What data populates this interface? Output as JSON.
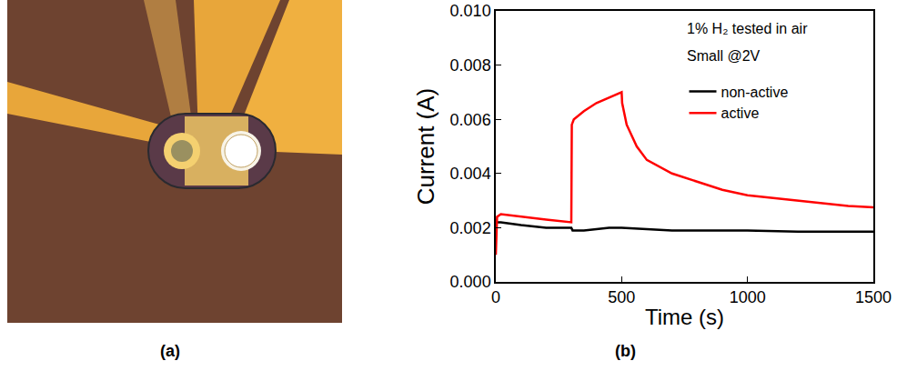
{
  "figure": {
    "captions": [
      "(a)",
      "(b)"
    ]
  },
  "chart_data": {
    "type": "line",
    "x_label": "Time (s)",
    "y_label": "Current (A)",
    "annotations": [
      "1% H₂ tested in air",
      "Small @2V"
    ],
    "xlim": [
      0,
      1500
    ],
    "xticks": [
      0,
      500,
      1000,
      1500
    ],
    "ylim": [
      0,
      0.01
    ],
    "yticks": [
      {
        "value": 0,
        "label": "0.000"
      },
      {
        "value": 0.002,
        "label": "0.002"
      },
      {
        "value": 0.004,
        "label": "0.004"
      },
      {
        "value": 0.006,
        "label": "0.006"
      },
      {
        "value": 0.008,
        "label": "0.008"
      },
      {
        "value": 0.01,
        "label": "0.010"
      }
    ],
    "grid": false,
    "legend": "top right",
    "series": [
      {
        "name": "non-active",
        "color": "#000000",
        "line_style": "solid",
        "x": [
          0,
          20,
          100,
          200,
          300,
          305,
          350,
          400,
          450,
          500,
          550,
          700,
          1000,
          1200,
          1500
        ],
        "values": [
          0.0022,
          0.0022,
          0.0021,
          0.002,
          0.002,
          0.0019,
          0.0019,
          0.00195,
          0.002,
          0.002,
          0.00198,
          0.0019,
          0.0019,
          0.00185,
          0.00185
        ]
      },
      {
        "name": "active",
        "color": "#ff0000",
        "line_style": "solid",
        "x": [
          0,
          5,
          20,
          100,
          200,
          300,
          302,
          310,
          350,
          400,
          450,
          500,
          502,
          520,
          560,
          600,
          700,
          800,
          900,
          1000,
          1100,
          1200,
          1300,
          1400,
          1500
        ],
        "values": [
          0.001,
          0.0024,
          0.0025,
          0.0024,
          0.0023,
          0.0022,
          0.0058,
          0.006,
          0.0063,
          0.0066,
          0.0068,
          0.007,
          0.0066,
          0.0058,
          0.005,
          0.0045,
          0.004,
          0.0037,
          0.0034,
          0.0032,
          0.0031,
          0.003,
          0.0029,
          0.0028,
          0.00275
        ]
      }
    ]
  }
}
